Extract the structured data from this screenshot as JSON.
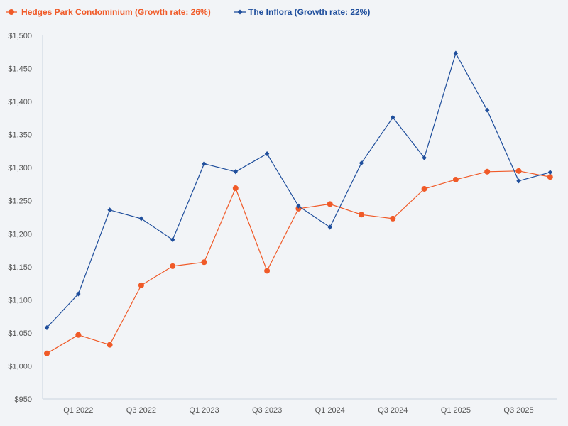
{
  "colors": {
    "hedges": "#f05a28",
    "inflora": "#1f4e9c",
    "axis": "#c9d3df",
    "text": "#555555",
    "background": "#f2f4f7"
  },
  "chart_data": {
    "type": "line",
    "title": "",
    "xlabel": "",
    "ylabel": "",
    "ylim": [
      950,
      1500
    ],
    "yticks": [
      950,
      1000,
      1050,
      1100,
      1150,
      1200,
      1250,
      1300,
      1350,
      1400,
      1450,
      1500
    ],
    "ytick_labels": [
      "$950",
      "$1,000",
      "$1,050",
      "$1,100",
      "$1,150",
      "$1,200",
      "$1,250",
      "$1,300",
      "$1,350",
      "$1,400",
      "$1,450",
      "$1,500"
    ],
    "categories": [
      "Q4 2021",
      "Q1 2022",
      "Q2 2022",
      "Q3 2022",
      "Q4 2022",
      "Q1 2023",
      "Q2 2023",
      "Q3 2023",
      "Q4 2023",
      "Q1 2024",
      "Q2 2024",
      "Q3 2024",
      "Q4 2024",
      "Q1 2025",
      "Q2 2025",
      "Q3 2025",
      "Q4 2025"
    ],
    "xtick_labels": [
      "Q1 2022",
      "Q3 2022",
      "Q1 2023",
      "Q3 2023",
      "Q1 2024",
      "Q3 2024",
      "Q1 2025",
      "Q3 2025"
    ],
    "xtick_indices": [
      1,
      3,
      5,
      7,
      9,
      11,
      13,
      15
    ],
    "legend_position": "top-left",
    "series": [
      {
        "name": "Hedges Park Condominium (Growth rate: 26%)",
        "color_key": "hedges",
        "marker": "circle",
        "values": [
          1019,
          1047,
          1032,
          1122,
          1151,
          1157,
          1269,
          1144,
          1238,
          1245,
          1229,
          1223,
          1268,
          1282,
          1294,
          1295,
          1286
        ]
      },
      {
        "name": "The Inflora (Growth rate: 22%)",
        "color_key": "inflora",
        "marker": "diamond",
        "values": [
          1058,
          1109,
          1236,
          1223,
          1191,
          1306,
          1294,
          1321,
          1242,
          1210,
          1307,
          1376,
          1315,
          1473,
          1387,
          1280,
          1293
        ]
      }
    ]
  }
}
